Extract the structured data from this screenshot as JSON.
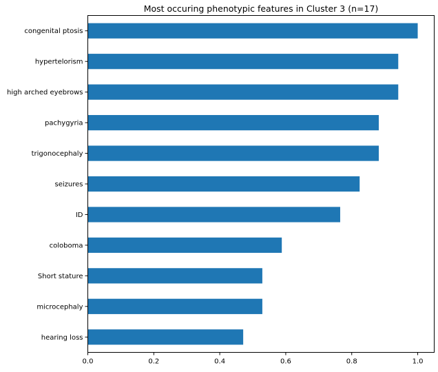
{
  "chart_data": {
    "type": "bar",
    "orientation": "horizontal",
    "title": "Most occuring phenotypic features in Cluster 3 (n=17)",
    "xlabel": "",
    "ylabel": "",
    "categories": [
      "congenital ptosis",
      "hypertelorism",
      "high arched eyebrows",
      "pachygyria",
      "trigonocephaly",
      "seizures",
      "ID",
      "coloboma",
      "Short stature",
      "microcephaly",
      "hearing loss"
    ],
    "values": [
      1.0,
      0.941,
      0.941,
      0.882,
      0.882,
      0.824,
      0.765,
      0.588,
      0.529,
      0.529,
      0.471
    ],
    "xlim": [
      0,
      1.05
    ],
    "xticks": [
      0.0,
      0.2,
      0.4,
      0.6,
      0.8,
      1.0
    ],
    "xtick_labels": [
      "0.0",
      "0.2",
      "0.4",
      "0.6",
      "0.8",
      "1.0"
    ],
    "grid": false,
    "legend": "none",
    "bar_color": "#1f77b4"
  }
}
